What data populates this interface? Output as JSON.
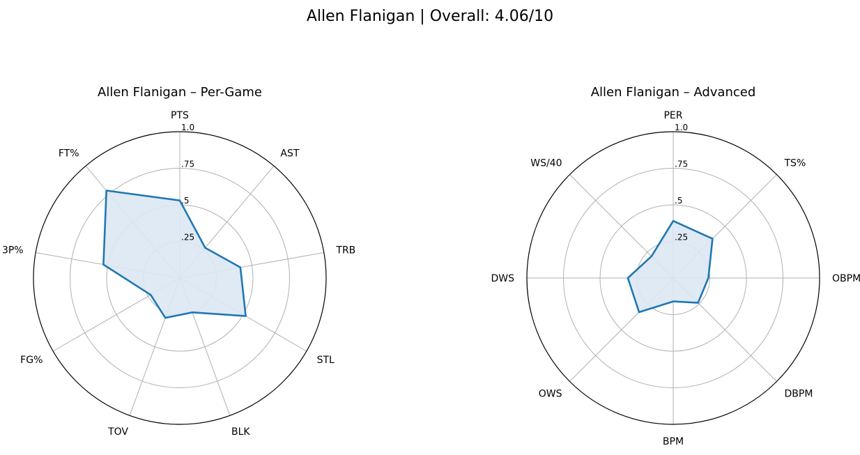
{
  "figure": {
    "suptitle": "Allen Flanigan | Overall: 4.06/10"
  },
  "colors": {
    "series": "#1f77b4",
    "fill": "#dce8f3",
    "grid": "#b0b0b0",
    "frame": "#000000"
  },
  "chart_data": [
    {
      "type": "radar",
      "title": "Allen Flanigan – Per-Game",
      "categories": [
        "PTS",
        "AST",
        "TRB",
        "STL",
        "BLK",
        "TOV",
        "FG%",
        "3P%",
        "FT%"
      ],
      "series": [
        {
          "values": [
            0.53,
            0.27,
            0.42,
            0.52,
            0.25,
            0.29,
            0.23,
            0.53,
            0.78
          ]
        }
      ],
      "rlim": [
        0,
        1.0
      ],
      "rticks": [
        0.25,
        0.5,
        0.75,
        1.0
      ],
      "rtick_labels": [
        ".25",
        ".5",
        ".75",
        "1.0"
      ],
      "grid": true,
      "filled": true
    },
    {
      "type": "radar",
      "title": "Allen Flanigan – Advanced",
      "categories": [
        "PER",
        "TS%",
        "OBPM",
        "DBPM",
        "BPM",
        "OWS",
        "DWS",
        "WS/40"
      ],
      "series": [
        {
          "values": [
            0.39,
            0.38,
            0.24,
            0.24,
            0.16,
            0.33,
            0.31,
            0.21
          ]
        }
      ],
      "rlim": [
        0,
        1.0
      ],
      "rticks": [
        0.25,
        0.5,
        0.75,
        1.0
      ],
      "rtick_labels": [
        ".25",
        ".5",
        ".75",
        "1.0"
      ],
      "grid": true,
      "filled": true
    }
  ]
}
